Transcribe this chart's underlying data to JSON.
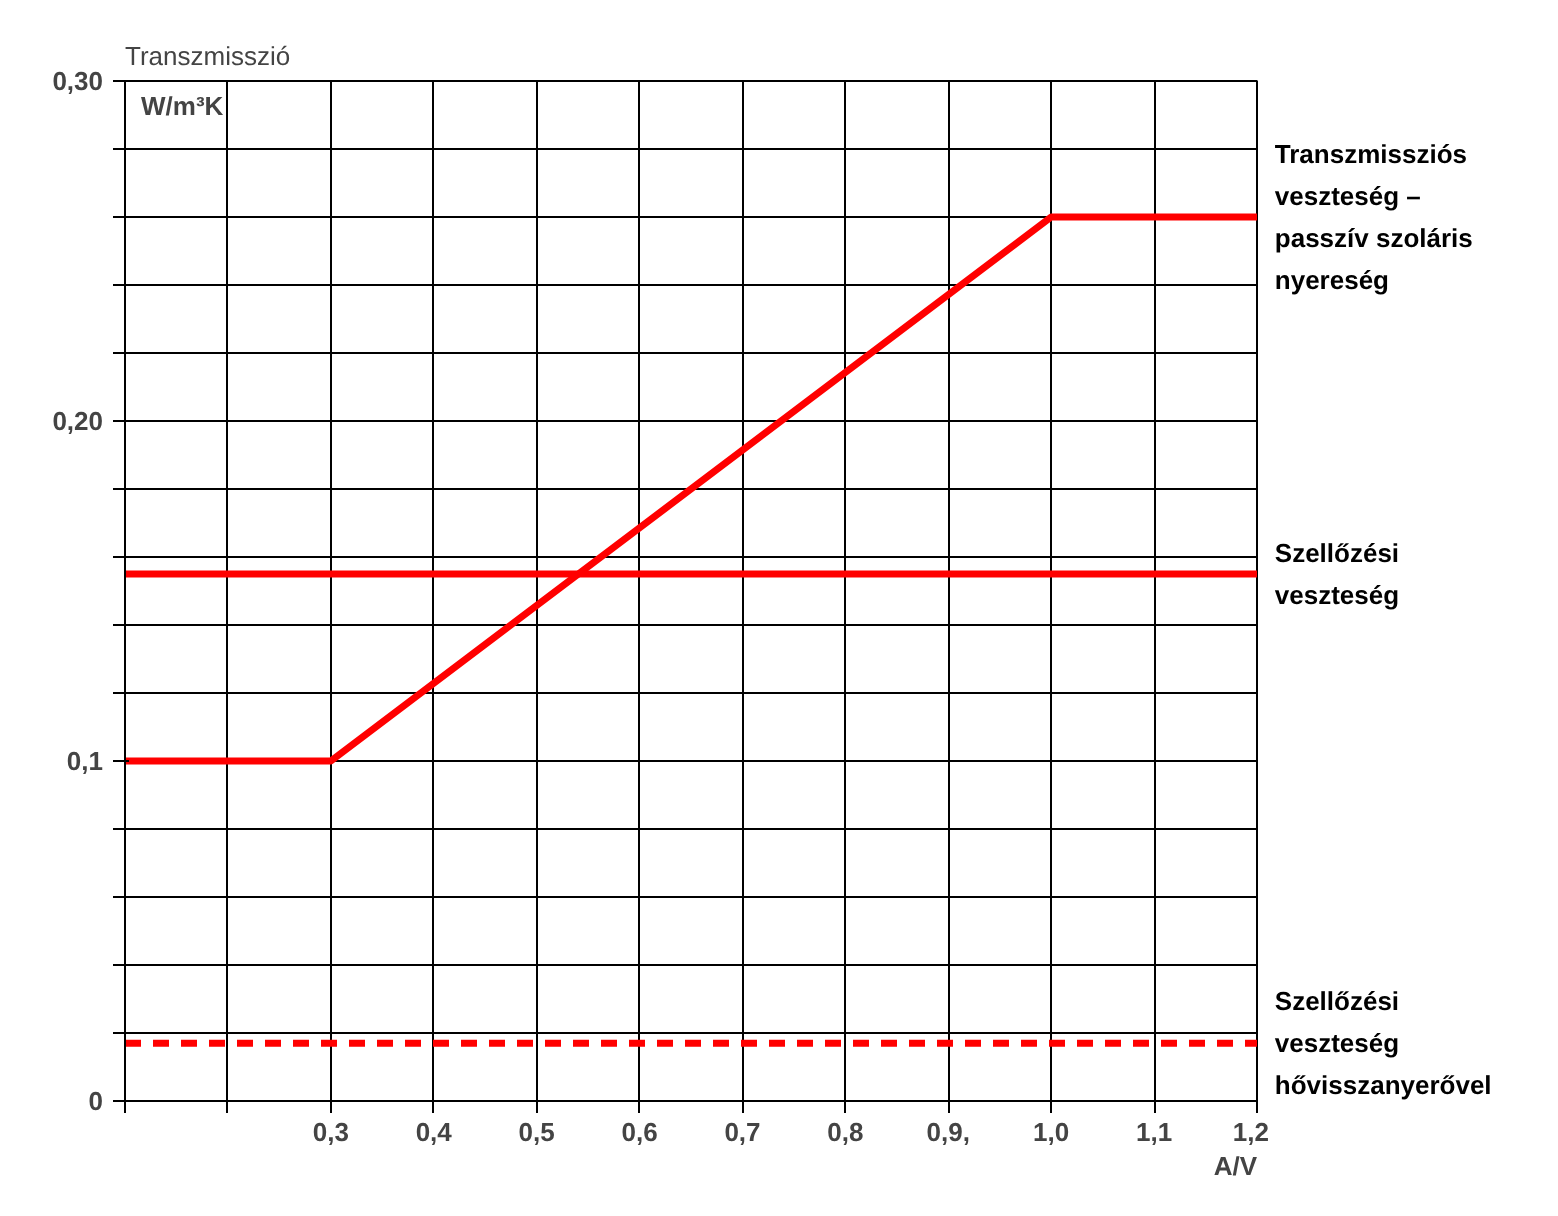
{
  "chart_data": {
    "type": "line",
    "title": "Transzmisszió",
    "ylabel": "W/m³K",
    "xlabel": "A/V",
    "x": [
      0.1,
      0.3,
      1.0,
      1.2
    ],
    "series": [
      {
        "name": "Transzmissziós\nveszteség –\npasszív szoláris\nnyereség",
        "color": "#ff0000",
        "values": [
          0.1,
          0.1,
          0.26,
          0.26
        ]
      },
      {
        "name": "Szellőzési\nveszteség",
        "color": "#ff0000",
        "values": [
          0.155,
          0.155,
          0.155,
          0.155
        ]
      },
      {
        "name": "Szellőzési\nveszteség\nhővisszanyerővel",
        "color": "#ff0000",
        "values": [
          0.017,
          0.017,
          0.017,
          0.017
        ],
        "line_style": "dashed"
      }
    ],
    "xlim": [
      0.1,
      1.2
    ],
    "xticks": [
      {
        "value": 0.1,
        "label": null
      },
      {
        "value": 0.2,
        "label": null
      },
      {
        "value": 0.3,
        "label": "0,3"
      },
      {
        "value": 0.4,
        "label": "0,4"
      },
      {
        "value": 0.5,
        "label": "0,5"
      },
      {
        "value": 0.6,
        "label": "0,6"
      },
      {
        "value": 0.7,
        "label": "0,7"
      },
      {
        "value": 0.8,
        "label": "0,8"
      },
      {
        "value": 0.9,
        "label": "0,9,"
      },
      {
        "value": 1.0,
        "label": "1,0"
      },
      {
        "value": 1.1,
        "label": "1,1"
      },
      {
        "value": 1.2,
        "label": "1,2"
      }
    ],
    "ylim": [
      0,
      0.3
    ],
    "yticks": [
      {
        "value": 0,
        "label": "0"
      },
      {
        "value": 0.02,
        "label": null
      },
      {
        "value": 0.04,
        "label": null
      },
      {
        "value": 0.06,
        "label": null
      },
      {
        "value": 0.08,
        "label": null
      },
      {
        "value": 0.1,
        "label": "0,1"
      },
      {
        "value": 0.12,
        "label": null
      },
      {
        "value": 0.14,
        "label": null
      },
      {
        "value": 0.16,
        "label": null
      },
      {
        "value": 0.18,
        "label": null
      },
      {
        "value": 0.2,
        "label": "0,20"
      },
      {
        "value": 0.22,
        "label": null
      },
      {
        "value": 0.24,
        "label": null
      },
      {
        "value": 0.26,
        "label": null
      },
      {
        "value": 0.28,
        "label": null
      },
      {
        "value": 0.3,
        "label": "0,30"
      }
    ],
    "grid": true,
    "legend": false
  }
}
